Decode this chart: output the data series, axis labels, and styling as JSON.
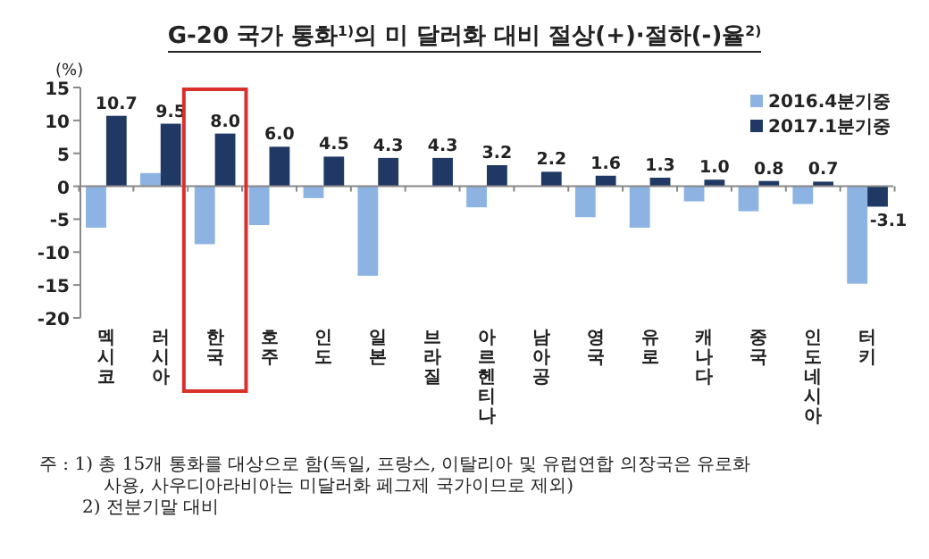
{
  "chart_data": {
    "type": "bar",
    "title": "G-20 국가 통화$^{1)}$의 미 달러화 대비 절상(+)·절하(-)율$^{2)}$",
    "ylabel": "(%)",
    "categories": [
      "멕시코",
      "러시아",
      "한국",
      "호주",
      "인도",
      "일본",
      "브라질",
      "아르헨티나",
      "남아공",
      "영국",
      "유로",
      "캐나다",
      "중국",
      "인도네시아",
      "터키"
    ],
    "series": [
      {
        "name": "2016.4분기중",
        "color": "#8db3e2",
        "values": [
          -6.3,
          2.0,
          -8.8,
          -5.9,
          -1.8,
          -13.6,
          null,
          -3.2,
          null,
          -4.7,
          -6.3,
          -2.3,
          -3.8,
          -2.7,
          -14.8
        ]
      },
      {
        "name": "2017.1분기중",
        "color": "#1f3864",
        "values": [
          10.7,
          9.5,
          8.0,
          6.0,
          4.5,
          4.3,
          4.3,
          3.2,
          2.2,
          1.6,
          1.3,
          1.0,
          0.8,
          0.7,
          -3.1
        ],
        "value_labels": [
          "10.7",
          "9.5",
          "8.0",
          "6.0",
          "4.5",
          "4.3",
          "4.3",
          "3.2",
          "2.2",
          "1.6",
          "1.3",
          "1.0",
          "0.8",
          "0.7",
          "-3.1"
        ]
      }
    ],
    "ylim": [
      -20,
      15
    ],
    "yticks": [
      15,
      10,
      5,
      0,
      -5,
      -10,
      -15,
      -20
    ],
    "legend": "top right",
    "annotations": [
      "주 : 1) 총 15개 통화를 대상으로 함(독일, 프랑스, 이탈리아 및 유럽연합 의장국은 유로화",
      "사용, 사우디아라비아는 미달러화 페그제 국가이므로 제외)",
      "2) 전분기말 대비"
    ]
  }
}
